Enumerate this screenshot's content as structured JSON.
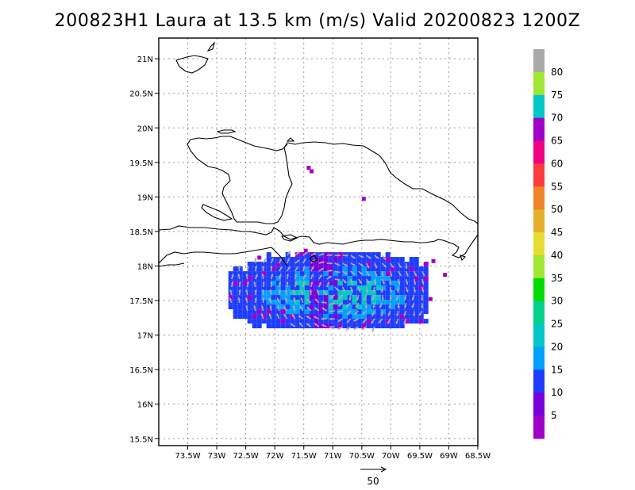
{
  "title": "200823H1 Laura at 13.5 km (m/s) Valid 20200823 1200Z",
  "map": {
    "lon_range": [
      -74,
      -68.5
    ],
    "lat_range": [
      15.4,
      21.3
    ],
    "lon_ticks": [
      -73.5,
      -73,
      -72.5,
      -72,
      -71.5,
      -71,
      -70.5,
      -70,
      -69.5,
      -69,
      -68.5
    ],
    "lon_tick_labels": [
      "73.5W",
      "73W",
      "72.5W",
      "72W",
      "71.5W",
      "71W",
      "70.5W",
      "70W",
      "69.5W",
      "69W",
      "68.5W"
    ],
    "lat_ticks": [
      15.5,
      16,
      16.5,
      17,
      17.5,
      18,
      18.5,
      19,
      19.5,
      20,
      20.5,
      21
    ],
    "lat_tick_labels": [
      "15.5N",
      "16N",
      "16.5N",
      "17N",
      "17.5N",
      "18N",
      "18.5N",
      "19N",
      "19.5N",
      "20N",
      "20.5N",
      "21N"
    ],
    "grid": true,
    "coastline_color": "#000000"
  },
  "colorbar": {
    "levels": [
      "5",
      "10",
      "15",
      "20",
      "25",
      "30",
      "35",
      "40",
      "45",
      "50",
      "55",
      "60",
      "65",
      "70",
      "75",
      "80"
    ],
    "colors": [
      "#a000c8",
      "#7800dc",
      "#1e3cff",
      "#00a0ff",
      "#00c8c8",
      "#00d28c",
      "#00dc00",
      "#a0e632",
      "#e6dc32",
      "#e6af2d",
      "#f08228",
      "#fa3c3c",
      "#f00082",
      "#a000c8",
      "#00c8c8",
      "#a0e632",
      "#aaaaaa"
    ]
  },
  "wind_field": {
    "description": "storm wind field south of Hispaniola near 17.1N-18.2N, 72.8W-69.5W",
    "lon_min": -72.8,
    "lon_max": -69.4,
    "lat_min": 17.1,
    "lat_max": 18.2,
    "dominant_colors": [
      "#1e3cff",
      "#00a0ff",
      "#00c8c8",
      "#7800dc",
      "#a000c8"
    ],
    "vector_color": "#aaaaaa"
  },
  "reference_vector": {
    "label": "50"
  }
}
